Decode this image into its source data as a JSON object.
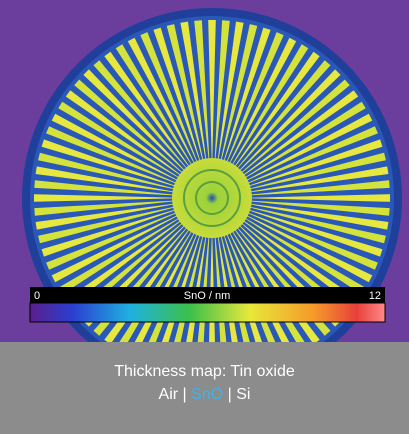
{
  "image": {
    "colorbar": {
      "min": "0",
      "label": "SnO / nm",
      "max": "12"
    }
  },
  "caption": {
    "title": "Thickness map: Tin oxide",
    "layers": [
      "Air",
      "SnO",
      "Si"
    ],
    "separator": "|"
  }
}
